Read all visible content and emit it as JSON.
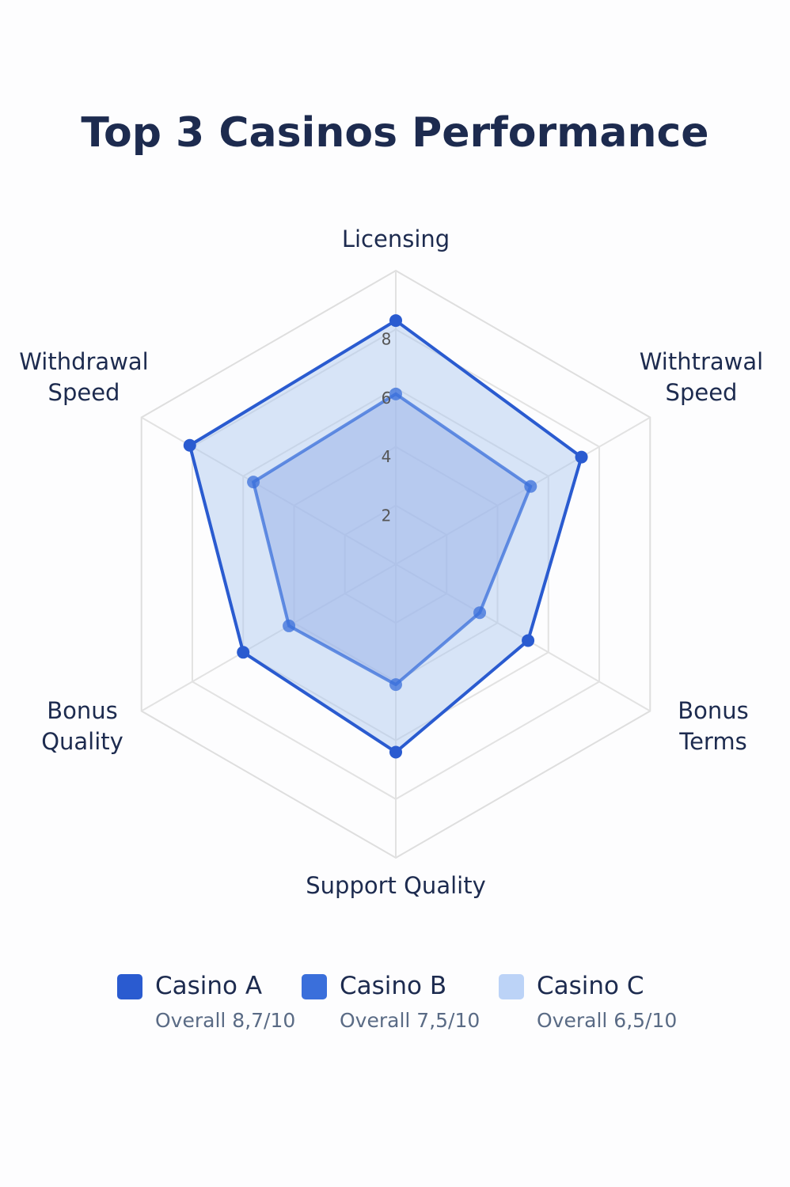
{
  "chart_data": {
    "type": "radar",
    "title": "Top 3 Casinos Performance",
    "categories": [
      "Licensing",
      "Withtrawal Speed",
      "Bonus Terms",
      "Support Quality",
      "Bonus Quality",
      "Withdrawal Speed"
    ],
    "rlim": [
      0,
      10
    ],
    "rticks": [
      2,
      4,
      6,
      8
    ],
    "grid": true,
    "series": [
      {
        "name": "Casino A",
        "color": "#2a5bd0",
        "overall": "Overall 8,7/10",
        "values": [
          8.3,
          7.3,
          5.2,
          6.4,
          6.0,
          8.1
        ]
      },
      {
        "name": "Casino B",
        "color": "#3a6fdb",
        "overall": "Overall 7,5/10",
        "values": [
          5.8,
          5.3,
          3.3,
          4.1,
          4.2,
          5.6
        ]
      },
      {
        "name": "Casino C",
        "color": "#bcd3f7",
        "overall": "Overall 6,5/10"
      }
    ]
  }
}
